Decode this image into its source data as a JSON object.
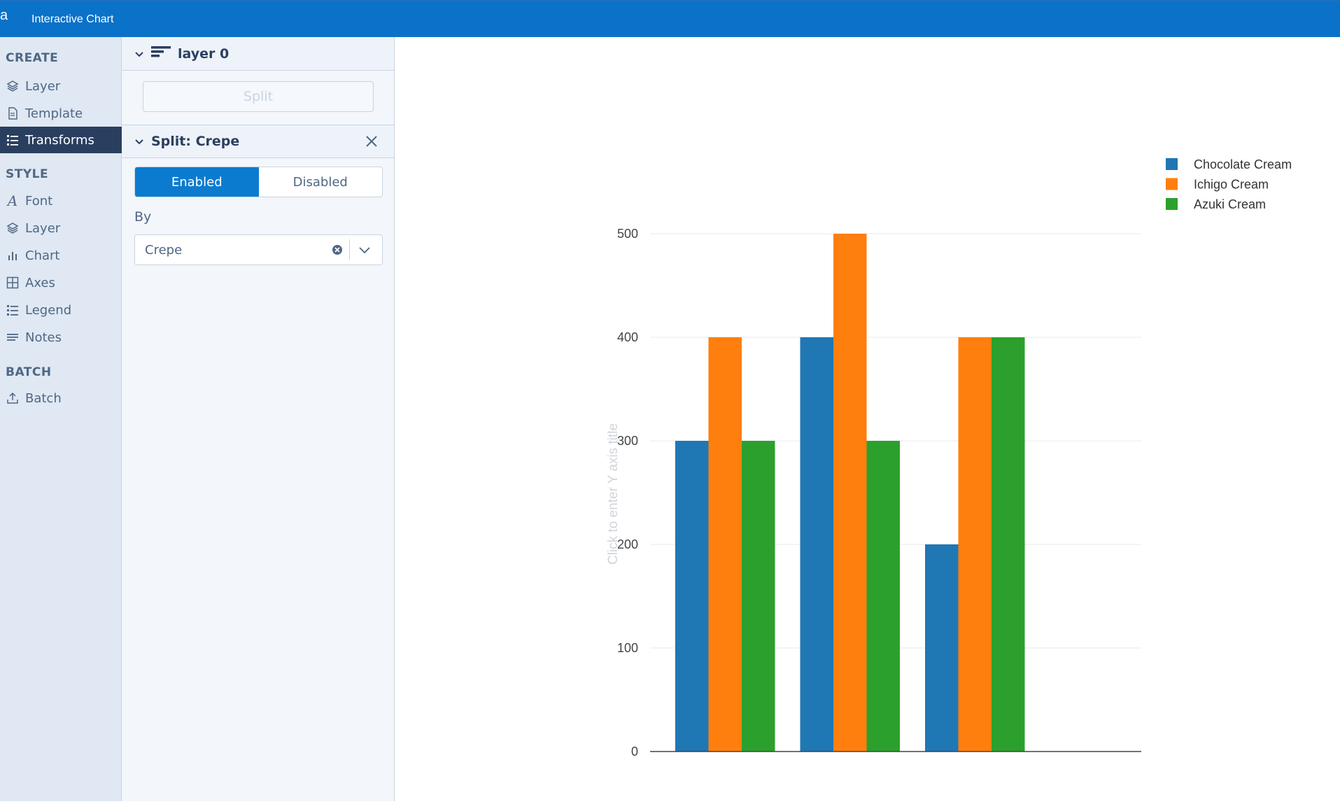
{
  "app": {
    "logo": "a",
    "title": "Interactive Chart"
  },
  "sidebar": {
    "sections": [
      {
        "heading": "CREATE",
        "items": [
          {
            "label": "Layer",
            "icon": "layers-icon"
          },
          {
            "label": "Template",
            "icon": "document-icon"
          },
          {
            "label": "Transforms",
            "icon": "list-icon",
            "active": true
          }
        ]
      },
      {
        "heading": "STYLE",
        "items": [
          {
            "label": "Font",
            "icon": "font-icon"
          },
          {
            "label": "Layer",
            "icon": "layers-icon"
          },
          {
            "label": "Chart",
            "icon": "bar-chart-icon"
          },
          {
            "label": "Axes",
            "icon": "grid-icon"
          },
          {
            "label": "Legend",
            "icon": "list-icon"
          },
          {
            "label": "Notes",
            "icon": "text-lines-icon"
          }
        ]
      },
      {
        "heading": "BATCH",
        "items": [
          {
            "label": "Batch",
            "icon": "upload-icon"
          }
        ]
      }
    ]
  },
  "panel": {
    "layer_title": "layer 0",
    "split_button": "Split",
    "transform_title": "Split: Crepe",
    "toggle": {
      "enabled": "Enabled",
      "disabled": "Disabled",
      "selected": "Enabled"
    },
    "by_label": "By",
    "by_value": "Crepe"
  },
  "colors": {
    "accent": "#0b72c9",
    "active_nav": "#2a3f5f",
    "series": [
      "#1f77b4",
      "#ff7f0e",
      "#2ca02c"
    ]
  },
  "chart_data": {
    "type": "bar",
    "categories": [
      "",
      "",
      ""
    ],
    "series": [
      {
        "name": "Chocolate Cream",
        "values": [
          300,
          400,
          200
        ]
      },
      {
        "name": "Ichigo Cream",
        "values": [
          400,
          500,
          400
        ]
      },
      {
        "name": "Azuki Cream",
        "values": [
          300,
          300,
          400
        ]
      }
    ],
    "y_ticks": [
      0,
      100,
      200,
      300,
      400,
      500
    ],
    "ylim": [
      0,
      500
    ],
    "ylabel_placeholder": "Click to enter Y axis title",
    "grid": true,
    "legend_position": "top-right"
  }
}
